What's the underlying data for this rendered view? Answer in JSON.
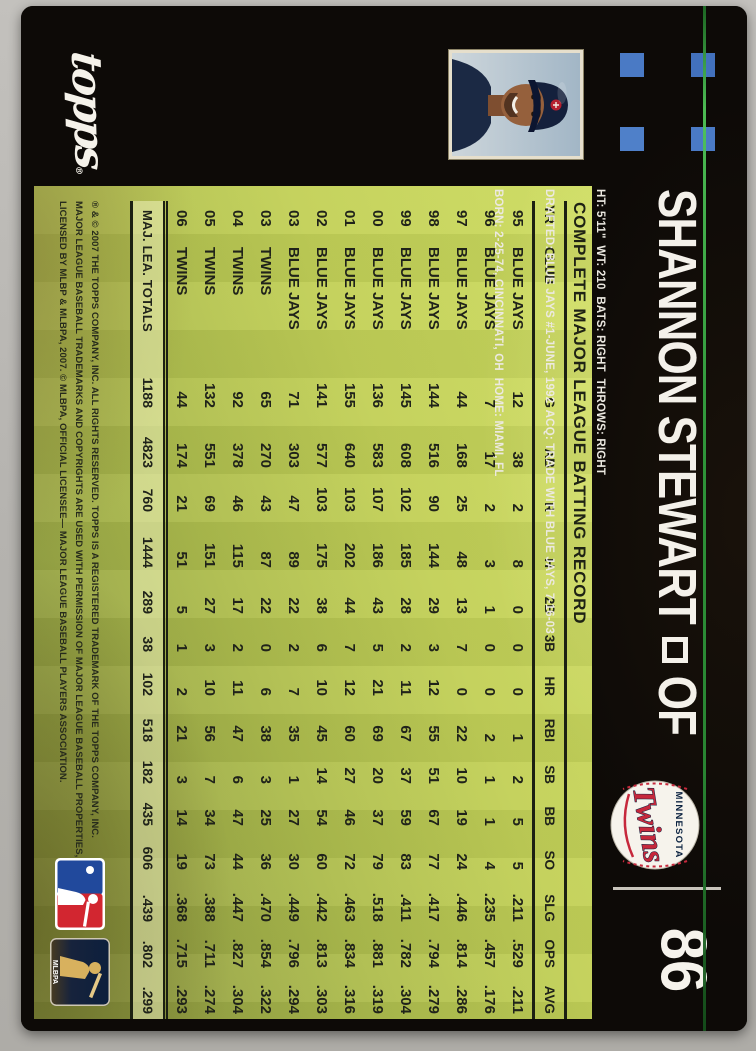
{
  "card": {
    "brand": "topps",
    "player_name": "SHANNON STEWART",
    "position": "OF",
    "card_number": "86",
    "team_logo": {
      "city": "MINNESOTA",
      "name": "Twins"
    },
    "bio_lines": [
      "HT: 5'11\"  WT: 210  BATS: RIGHT  THROWS: RIGHT",
      "DRAFTED: BLUE JAYS #1-JUNE, 1992  ACQ: TRADE WITH BLUE JAYS, 7-16-03",
      "BORN: 2-25-74, CINCINNATI, OH  HOME: MIAMI, FL"
    ],
    "stats_title": "COMPLETE MAJOR LEAGUE BATTING RECORD",
    "table": {
      "headers": [
        "YR",
        "CLUB",
        "G",
        "AB",
        "R",
        "H",
        "2B",
        "3B",
        "HR",
        "RBI",
        "SB",
        "BB",
        "SO",
        "SLG",
        "OPS",
        "AVG"
      ],
      "rows": [
        [
          "95",
          "BLUE JAYS",
          "12",
          "38",
          "2",
          "8",
          "0",
          "0",
          "0",
          "1",
          "2",
          "5",
          "5",
          ".211",
          ".529",
          ".211"
        ],
        [
          "96",
          "BLUE JAYS",
          "7",
          "17",
          "2",
          "3",
          "1",
          "0",
          "0",
          "2",
          "1",
          "1",
          "4",
          ".235",
          ".457",
          ".176"
        ],
        [
          "97",
          "BLUE JAYS",
          "44",
          "168",
          "25",
          "48",
          "13",
          "7",
          "0",
          "22",
          "10",
          "19",
          "24",
          ".446",
          ".814",
          ".286"
        ],
        [
          "98",
          "BLUE JAYS",
          "144",
          "516",
          "90",
          "144",
          "29",
          "3",
          "12",
          "55",
          "51",
          "67",
          "77",
          ".417",
          ".794",
          ".279"
        ],
        [
          "99",
          "BLUE JAYS",
          "145",
          "608",
          "102",
          "185",
          "28",
          "2",
          "11",
          "67",
          "37",
          "59",
          "83",
          ".411",
          ".782",
          ".304"
        ],
        [
          "00",
          "BLUE JAYS",
          "136",
          "583",
          "107",
          "186",
          "43",
          "5",
          "21",
          "69",
          "20",
          "37",
          "79",
          ".518",
          ".881",
          ".319"
        ],
        [
          "01",
          "BLUE JAYS",
          "155",
          "640",
          "103",
          "202",
          "44",
          "7",
          "12",
          "60",
          "27",
          "46",
          "72",
          ".463",
          ".834",
          ".316"
        ],
        [
          "02",
          "BLUE JAYS",
          "141",
          "577",
          "103",
          "175",
          "38",
          "6",
          "10",
          "45",
          "14",
          "54",
          "60",
          ".442",
          ".813",
          ".303"
        ],
        [
          "03",
          "BLUE JAYS",
          "71",
          "303",
          "47",
          "89",
          "22",
          "2",
          "7",
          "35",
          "1",
          "27",
          "30",
          ".449",
          ".796",
          ".294"
        ],
        [
          "03",
          "TWINS",
          "65",
          "270",
          "43",
          "87",
          "22",
          "0",
          "6",
          "38",
          "3",
          "25",
          "36",
          ".470",
          ".854",
          ".322"
        ],
        [
          "04",
          "TWINS",
          "92",
          "378",
          "46",
          "115",
          "17",
          "2",
          "11",
          "47",
          "6",
          "47",
          "44",
          ".447",
          ".827",
          ".304"
        ],
        [
          "05",
          "TWINS",
          "132",
          "551",
          "69",
          "151",
          "27",
          "3",
          "10",
          "56",
          "7",
          "34",
          "73",
          ".388",
          ".711",
          ".274"
        ],
        [
          "06",
          "TWINS",
          "44",
          "174",
          "21",
          "51",
          "5",
          "1",
          "2",
          "21",
          "3",
          "14",
          "19",
          ".368",
          ".715",
          ".293"
        ]
      ],
      "totals": {
        "label": "MAJ. LEA. TOTALS",
        "values": [
          "1188",
          "4823",
          "760",
          "1444",
          "289",
          "38",
          "102",
          "518",
          "182",
          "435",
          "606",
          ".439",
          ".802",
          ".299"
        ]
      }
    },
    "fine_print": [
      "® & © 2007 THE TOPPS COMPANY, INC. ALL RIGHTS RESERVED. TOPPS IS A REGISTERED TRADEMARK OF THE TOPPS COMPANY, INC.",
      "MAJOR LEAGUE BASEBALL TRADEMARKS AND COPYRIGHTS ARE USED WITH PERMISSION OF MAJOR LEAGUE BASEBALL PROPERTIES, INC.",
      "LICENSED BY MLBP & MLBPA, 2007. © MLBPA, OFFICIAL LICENSEE— MAJOR LEAGUE BASEBALL PLAYERS ASSOCIATION."
    ],
    "mlbpa_label": "MLBPA",
    "colors": {
      "grass_light": "#ccdb60",
      "grass_dark": "#879441",
      "accent_green": "#3aa445",
      "square_blue": "#4a7ac5",
      "twins_red": "#c6283c",
      "twins_navy": "#0c2341",
      "card_black": "#0d0a07"
    }
  }
}
